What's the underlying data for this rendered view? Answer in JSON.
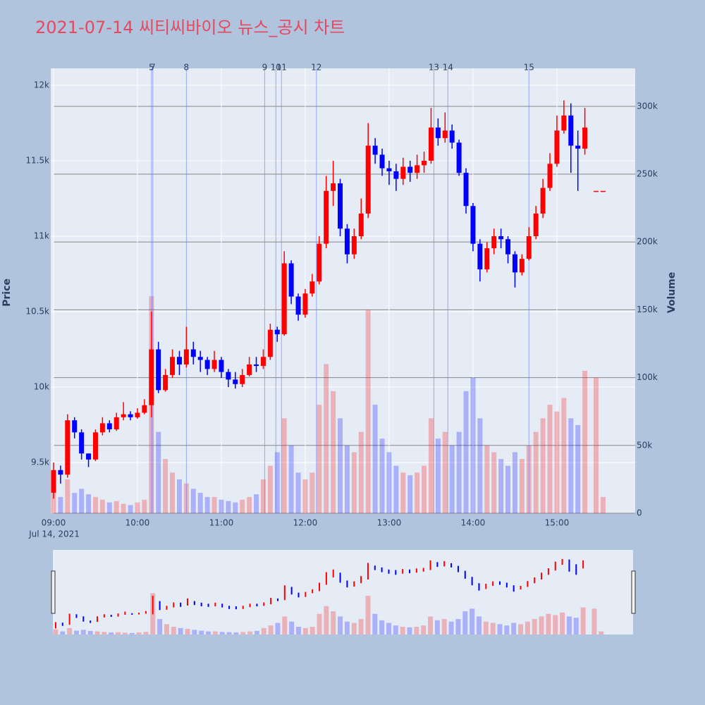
{
  "chart_data": {
    "type": "candlestick",
    "title": "2021-07-14 씨티씨바이오 뉴스_공시 차트",
    "y_label": "Price",
    "y2_label": "Volume",
    "x_sublabel": "Jul 14, 2021",
    "increasing_color": "#ff0000",
    "decreasing_color": "#0000ff",
    "xlim": [
      "2021-07-14 08:58",
      "2021-07-14 15:56"
    ],
    "xticks": [
      {
        "value": "2021-07-14 09:00",
        "label": "09:00"
      },
      {
        "value": "2021-07-14 10:00",
        "label": "10:00"
      },
      {
        "value": "2021-07-14 11:00",
        "label": "11:00"
      },
      {
        "value": "2021-07-14 12:00",
        "label": "12:00"
      },
      {
        "value": "2021-07-14 13:00",
        "label": "13:00"
      },
      {
        "value": "2021-07-14 14:00",
        "label": "14:00"
      },
      {
        "value": "2021-07-14 15:00",
        "label": "15:00"
      }
    ],
    "ylim": [
      9164,
      12112
    ],
    "yticks": [
      {
        "value": 9500,
        "label": "9.5k"
      },
      {
        "value": 10000,
        "label": "10k"
      },
      {
        "value": 10500,
        "label": "10.5k"
      },
      {
        "value": 11000,
        "label": "11k"
      },
      {
        "value": 11500,
        "label": "11.5k"
      },
      {
        "value": 12000,
        "label": "12k"
      }
    ],
    "y2lim": [
      0,
      328000
    ],
    "y2ticks": [
      0,
      {
        "value": 50000,
        "label": "50k"
      },
      {
        "value": 100000,
        "label": "100k"
      },
      {
        "value": 150000,
        "label": "150k"
      },
      {
        "value": 200000,
        "label": "200k"
      },
      {
        "value": 250000,
        "label": "250k"
      },
      {
        "value": 300000,
        "label": "300k"
      }
    ],
    "news": [
      {
        "label": "5",
        "x": "2021-07-14 10:10"
      },
      {
        "label": "7",
        "x": "2021-07-14 10:11"
      },
      {
        "label": "8",
        "x": "2021-07-14 10:35"
      },
      {
        "label": "9",
        "x": "2021-07-14 11:31"
      },
      {
        "label": "10",
        "x": "2021-07-14 11:39"
      },
      {
        "label": "11",
        "x": "2021-07-14 11:43"
      },
      {
        "label": "12",
        "x": "2021-07-14 12:08"
      },
      {
        "label": "13",
        "x": "2021-07-14 13:32"
      },
      {
        "label": "14",
        "x": "2021-07-14 13:42"
      },
      {
        "label": "15",
        "x": "2021-07-14 14:40"
      }
    ],
    "x": [
      "2021-07-14 09:00",
      "2021-07-14 09:05",
      "2021-07-14 09:10",
      "2021-07-14 09:15",
      "2021-07-14 09:20",
      "2021-07-14 09:25",
      "2021-07-14 09:30",
      "2021-07-14 09:35",
      "2021-07-14 09:40",
      "2021-07-14 09:45",
      "2021-07-14 09:50",
      "2021-07-14 09:55",
      "2021-07-14 10:00",
      "2021-07-14 10:05",
      "2021-07-14 10:10",
      "2021-07-14 10:15",
      "2021-07-14 10:20",
      "2021-07-14 10:25",
      "2021-07-14 10:30",
      "2021-07-14 10:35",
      "2021-07-14 10:40",
      "2021-07-14 10:45",
      "2021-07-14 10:50",
      "2021-07-14 10:55",
      "2021-07-14 11:00",
      "2021-07-14 11:05",
      "2021-07-14 11:10",
      "2021-07-14 11:15",
      "2021-07-14 11:20",
      "2021-07-14 11:25",
      "2021-07-14 11:30",
      "2021-07-14 11:35",
      "2021-07-14 11:40",
      "2021-07-14 11:45",
      "2021-07-14 11:50",
      "2021-07-14 11:55",
      "2021-07-14 12:00",
      "2021-07-14 12:05",
      "2021-07-14 12:10",
      "2021-07-14 12:15",
      "2021-07-14 12:20",
      "2021-07-14 12:25",
      "2021-07-14 12:30",
      "2021-07-14 12:35",
      "2021-07-14 12:40",
      "2021-07-14 12:45",
      "2021-07-14 12:50",
      "2021-07-14 12:55",
      "2021-07-14 13:00",
      "2021-07-14 13:05",
      "2021-07-14 13:10",
      "2021-07-14 13:15",
      "2021-07-14 13:20",
      "2021-07-14 13:25",
      "2021-07-14 13:30",
      "2021-07-14 13:35",
      "2021-07-14 13:40",
      "2021-07-14 13:45",
      "2021-07-14 13:50",
      "2021-07-14 13:55",
      "2021-07-14 14:00",
      "2021-07-14 14:05",
      "2021-07-14 14:10",
      "2021-07-14 14:15",
      "2021-07-14 14:20",
      "2021-07-14 14:25",
      "2021-07-14 14:30",
      "2021-07-14 14:35",
      "2021-07-14 14:40",
      "2021-07-14 14:45",
      "2021-07-14 14:50",
      "2021-07-14 14:55",
      "2021-07-14 15:00",
      "2021-07-14 15:05",
      "2021-07-14 15:10",
      "2021-07-14 15:15",
      "2021-07-14 15:20",
      "2021-07-14 15:28",
      "2021-07-14 15:33"
    ],
    "open": [
      9300,
      9450,
      9420,
      9780,
      9700,
      9560,
      9520,
      9700,
      9760,
      9720,
      9800,
      9820,
      9800,
      9830,
      9880,
      10250,
      9980,
      10080,
      10200,
      10150,
      10250,
      10200,
      10180,
      10120,
      10180,
      10100,
      10050,
      10020,
      10080,
      10150,
      10140,
      10200,
      10380,
      10350,
      10820,
      10600,
      10480,
      10620,
      10700,
      10950,
      11300,
      11350,
      11050,
      10880,
      11000,
      11150,
      11600,
      11540,
      11450,
      11430,
      11380,
      11460,
      11420,
      11470,
      11500,
      11720,
      11650,
      11700,
      11620,
      11420,
      11200,
      10950,
      10780,
      10920,
      11000,
      10980,
      10880,
      10760,
      10850,
      11000,
      11150,
      11320,
      11480,
      11700,
      11800,
      11600,
      11580,
      11300,
      11300
    ],
    "high": [
      9500,
      9480,
      9820,
      9800,
      9720,
      9560,
      9720,
      9800,
      9780,
      9830,
      9900,
      9840,
      9860,
      9920,
      10500,
      10300,
      10120,
      10250,
      10240,
      10400,
      10300,
      10240,
      10200,
      10240,
      10200,
      10120,
      10100,
      10120,
      10200,
      10200,
      10250,
      10420,
      10400,
      10900,
      10840,
      10620,
      10650,
      10750,
      11000,
      11400,
      11500,
      11380,
      11080,
      11050,
      11250,
      11750,
      11650,
      11580,
      11500,
      11480,
      11520,
      11500,
      11540,
      11560,
      11850,
      11780,
      11820,
      11740,
      11640,
      11450,
      11220,
      10980,
      10960,
      11050,
      11050,
      11000,
      10900,
      10880,
      11060,
      11200,
      11380,
      11550,
      11800,
      11900,
      11880,
      11700,
      11850,
      11300,
      11300
    ],
    "low": [
      9260,
      9360,
      9400,
      9660,
      9520,
      9470,
      9510,
      9680,
      9700,
      9710,
      9780,
      9780,
      9790,
      9820,
      9800,
      9960,
      9970,
      10060,
      10080,
      10130,
      10150,
      10100,
      10080,
      10100,
      10060,
      10000,
      9990,
      10000,
      10070,
      10100,
      10120,
      10180,
      10300,
      10340,
      10550,
      10440,
      10460,
      10600,
      10680,
      10920,
      11200,
      11000,
      10820,
      10850,
      10980,
      11120,
      11480,
      11400,
      11340,
      11300,
      11340,
      11360,
      11380,
      11420,
      11480,
      11600,
      11620,
      11580,
      11400,
      11150,
      10900,
      10700,
      10760,
      10880,
      10920,
      10820,
      10660,
      10740,
      10840,
      10980,
      11120,
      11300,
      11460,
      11680,
      11420,
      11300,
      11540,
      11300,
      11300
    ],
    "close": [
      9450,
      9420,
      9780,
      9700,
      9560,
      9520,
      9700,
      9760,
      9720,
      9800,
      9820,
      9800,
      9830,
      9880,
      10250,
      9980,
      10080,
      10200,
      10150,
      10250,
      10200,
      10180,
      10120,
      10180,
      10100,
      10050,
      10020,
      10080,
      10150,
      10140,
      10200,
      10380,
      10350,
      10820,
      10600,
      10480,
      10620,
      10700,
      10950,
      11300,
      11350,
      11050,
      10880,
      11000,
      11150,
      11600,
      11540,
      11450,
      11430,
      11380,
      11460,
      11420,
      11470,
      11500,
      11720,
      11650,
      11700,
      11620,
      11420,
      11200,
      10950,
      10780,
      10920,
      11000,
      10980,
      10880,
      10760,
      10850,
      11000,
      11150,
      11320,
      11480,
      11700,
      11800,
      11600,
      11580,
      11720,
      11300,
      11300
    ],
    "volume": [
      20000,
      12000,
      25000,
      15000,
      18000,
      14000,
      12000,
      10000,
      8000,
      9000,
      7000,
      6000,
      8000,
      10000,
      160000,
      60000,
      40000,
      30000,
      25000,
      22000,
      18000,
      15000,
      12000,
      12000,
      10000,
      9000,
      8000,
      10000,
      12000,
      14000,
      25000,
      35000,
      45000,
      70000,
      50000,
      30000,
      25000,
      30000,
      80000,
      110000,
      90000,
      70000,
      50000,
      45000,
      60000,
      150000,
      80000,
      55000,
      45000,
      35000,
      30000,
      28000,
      30000,
      35000,
      70000,
      55000,
      60000,
      50000,
      60000,
      90000,
      100000,
      70000,
      50000,
      45000,
      40000,
      35000,
      45000,
      40000,
      50000,
      60000,
      70000,
      80000,
      75000,
      85000,
      70000,
      65000,
      105000,
      100000,
      12000
    ]
  }
}
